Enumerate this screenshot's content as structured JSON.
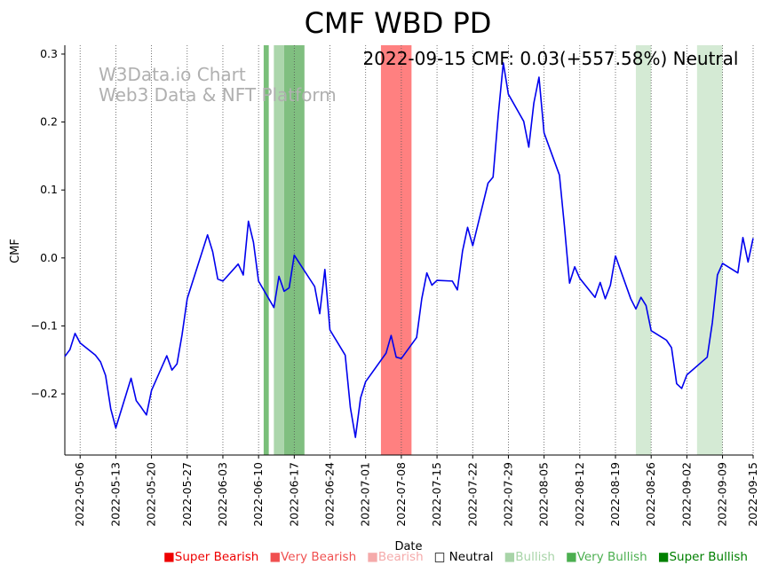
{
  "chart_data": {
    "type": "line",
    "title": "CMF WBD PD",
    "xlabel": "Date",
    "ylabel": "CMF",
    "ylim": [
      -0.29,
      0.313
    ],
    "yticks": [
      -0.2,
      -0.1,
      0.0,
      0.1,
      0.2,
      0.3
    ],
    "ytick_labels": [
      "−0.2",
      "−0.1",
      "0.0",
      "0.1",
      "0.2",
      "0.3"
    ],
    "xlim": [
      "2022-05-03",
      "2022-09-15"
    ],
    "xticks": [
      "2022-05-06",
      "2022-05-13",
      "2022-05-20",
      "2022-05-27",
      "2022-06-03",
      "2022-06-10",
      "2022-06-17",
      "2022-06-24",
      "2022-07-01",
      "2022-07-08",
      "2022-07-15",
      "2022-07-22",
      "2022-07-29",
      "2022-08-05",
      "2022-08-12",
      "2022-08-19",
      "2022-08-26",
      "2022-09-02",
      "2022-09-09",
      "2022-09-15"
    ],
    "annotation": "2022-09-15 CMF: 0.03(+557.58%) Neutral",
    "watermark": [
      "W3Data.io Chart",
      "Web3 Data & NFT Platform"
    ],
    "series": [
      {
        "name": "CMF",
        "color": "#0000ee",
        "x": [
          "2022-05-03",
          "2022-05-04",
          "2022-05-05",
          "2022-05-06",
          "2022-05-09",
          "2022-05-10",
          "2022-05-11",
          "2022-05-12",
          "2022-05-13",
          "2022-05-16",
          "2022-05-17",
          "2022-05-18",
          "2022-05-19",
          "2022-05-20",
          "2022-05-23",
          "2022-05-24",
          "2022-05-25",
          "2022-05-26",
          "2022-05-27",
          "2022-05-31",
          "2022-06-01",
          "2022-06-02",
          "2022-06-03",
          "2022-06-06",
          "2022-06-07",
          "2022-06-08",
          "2022-06-09",
          "2022-06-10",
          "2022-06-13",
          "2022-06-14",
          "2022-06-15",
          "2022-06-16",
          "2022-06-17",
          "2022-06-21",
          "2022-06-22",
          "2022-06-23",
          "2022-06-24",
          "2022-06-27",
          "2022-06-28",
          "2022-06-29",
          "2022-06-30",
          "2022-07-01",
          "2022-07-05",
          "2022-07-06",
          "2022-07-07",
          "2022-07-08",
          "2022-07-11",
          "2022-07-12",
          "2022-07-13",
          "2022-07-14",
          "2022-07-15",
          "2022-07-18",
          "2022-07-19",
          "2022-07-20",
          "2022-07-21",
          "2022-07-22",
          "2022-07-25",
          "2022-07-26",
          "2022-07-27",
          "2022-07-28",
          "2022-07-29",
          "2022-08-01",
          "2022-08-02",
          "2022-08-03",
          "2022-08-04",
          "2022-08-05",
          "2022-08-08",
          "2022-08-09",
          "2022-08-10",
          "2022-08-11",
          "2022-08-12",
          "2022-08-15",
          "2022-08-16",
          "2022-08-17",
          "2022-08-18",
          "2022-08-19",
          "2022-08-22",
          "2022-08-23",
          "2022-08-24",
          "2022-08-25",
          "2022-08-26",
          "2022-08-29",
          "2022-08-30",
          "2022-08-31",
          "2022-09-01",
          "2022-09-02",
          "2022-09-06",
          "2022-09-07",
          "2022-09-08",
          "2022-09-09",
          "2022-09-12",
          "2022-09-13",
          "2022-09-14",
          "2022-09-15"
        ],
        "values": [
          -0.145,
          -0.135,
          -0.111,
          -0.125,
          -0.143,
          -0.153,
          -0.173,
          -0.222,
          -0.25,
          -0.177,
          -0.21,
          -0.22,
          -0.231,
          -0.195,
          -0.144,
          -0.165,
          -0.156,
          -0.113,
          -0.06,
          0.034,
          0.009,
          -0.031,
          -0.034,
          -0.009,
          -0.025,
          0.054,
          0.023,
          -0.034,
          -0.073,
          -0.027,
          -0.049,
          -0.044,
          0.004,
          -0.042,
          -0.082,
          -0.017,
          -0.106,
          -0.143,
          -0.22,
          -0.264,
          -0.206,
          -0.182,
          -0.14,
          -0.114,
          -0.146,
          -0.148,
          -0.117,
          -0.06,
          -0.022,
          -0.04,
          -0.033,
          -0.034,
          -0.047,
          0.01,
          0.045,
          0.018,
          0.11,
          0.119,
          0.21,
          0.287,
          0.241,
          0.201,
          0.163,
          0.228,
          0.266,
          0.184,
          0.122,
          0.046,
          -0.037,
          -0.013,
          -0.03,
          -0.058,
          -0.036,
          -0.06,
          -0.04,
          0.003,
          -0.06,
          -0.075,
          -0.058,
          -0.07,
          -0.107,
          -0.121,
          -0.132,
          -0.185,
          -0.192,
          -0.172,
          -0.146,
          -0.095,
          -0.025,
          -0.008,
          -0.022,
          0.03,
          -0.006,
          0.029
        ]
      }
    ],
    "signal_spans": [
      {
        "start": "2022-06-11",
        "end": "2022-06-12",
        "level": "Very Bullish",
        "color": "#6ab86a",
        "opacity": 0.9
      },
      {
        "start": "2022-06-13",
        "end": "2022-06-15",
        "level": "Bullish",
        "color": "#a8d4a8",
        "opacity": 0.95
      },
      {
        "start": "2022-06-15",
        "end": "2022-06-19",
        "level": "Very Bullish",
        "color": "#80bf80",
        "opacity": 1.0
      },
      {
        "start": "2022-07-04",
        "end": "2022-07-10",
        "level": "Super Bearish",
        "color": "#ff8080",
        "opacity": 1.0
      },
      {
        "start": "2022-08-23",
        "end": "2022-08-26",
        "level": "Bullish",
        "color": "#d4ead4",
        "opacity": 1.0
      },
      {
        "start": "2022-09-04",
        "end": "2022-09-09",
        "level": "Bullish",
        "color": "#d4ead4",
        "opacity": 1.0
      }
    ],
    "legend": [
      {
        "label": "Super Bearish",
        "color": "#ee0000"
      },
      {
        "label": "Very Bearish",
        "color": "#f05050"
      },
      {
        "label": "Bearish",
        "color": "#f5aaaa"
      },
      {
        "label": "Neutral",
        "color": "#000000",
        "hollow": true
      },
      {
        "label": "Bullish",
        "color": "#a8d4a8"
      },
      {
        "label": "Very Bullish",
        "color": "#4caf50"
      },
      {
        "label": "Super Bullish",
        "color": "#008000"
      }
    ]
  }
}
